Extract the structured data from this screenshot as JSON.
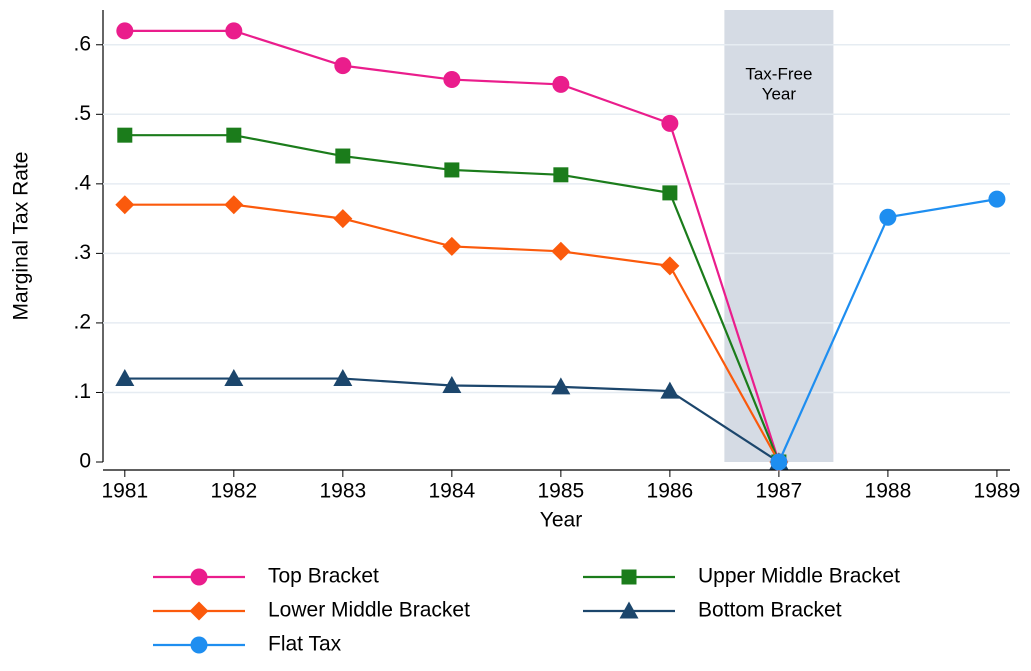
{
  "chart_data": {
    "type": "line",
    "x_label": "Year",
    "y_label": "Marginal Tax Rate",
    "x": [
      1981,
      1982,
      1983,
      1984,
      1985,
      1986,
      1987,
      1988,
      1989
    ],
    "xlim": [
      1980.8,
      1989.12
    ],
    "xticks": [
      1981,
      1982,
      1983,
      1984,
      1985,
      1986,
      1987,
      1988,
      1989
    ],
    "ylim": [
      0,
      0.65
    ],
    "yticks": [
      0,
      {
        "value": 0.1,
        "label": ".1"
      },
      {
        "value": 0.2,
        "label": ".2"
      },
      {
        "value": 0.3,
        "label": ".3"
      },
      {
        "value": 0.4,
        "label": ".4"
      },
      {
        "value": 0.5,
        "label": ".5"
      },
      {
        "value": 0.6,
        "label": ".6"
      }
    ],
    "grid": true,
    "annotation": {
      "text": [
        "Tax-Free",
        "Year"
      ],
      "x_range": [
        1986.5,
        1987.5
      ],
      "color": "#d5dbe4"
    },
    "series": [
      {
        "name": "Top Bracket",
        "color": "#ea1d8c",
        "marker": "circle",
        "values": [
          0.62,
          0.62,
          0.57,
          0.55,
          0.543,
          0.487,
          0,
          null,
          null
        ]
      },
      {
        "name": "Upper Middle Bracket",
        "color": "#1b7c1b",
        "marker": "square",
        "values": [
          0.47,
          0.47,
          0.44,
          0.42,
          0.413,
          0.387,
          0,
          null,
          null
        ]
      },
      {
        "name": "Lower Middle Bracket",
        "color": "#fb5a0c",
        "marker": "diamond",
        "values": [
          0.37,
          0.37,
          0.35,
          0.31,
          0.303,
          0.282,
          0,
          null,
          null
        ]
      },
      {
        "name": "Bottom Bracket",
        "color": "#1c466c",
        "marker": "triangle",
        "values": [
          0.12,
          0.12,
          0.12,
          0.11,
          0.108,
          0.102,
          0,
          null,
          null
        ]
      },
      {
        "name": "Flat Tax",
        "color": "#1e8ef0",
        "marker": "circle",
        "values": [
          null,
          null,
          null,
          null,
          null,
          null,
          0,
          0.352,
          0.378
        ]
      }
    ]
  }
}
